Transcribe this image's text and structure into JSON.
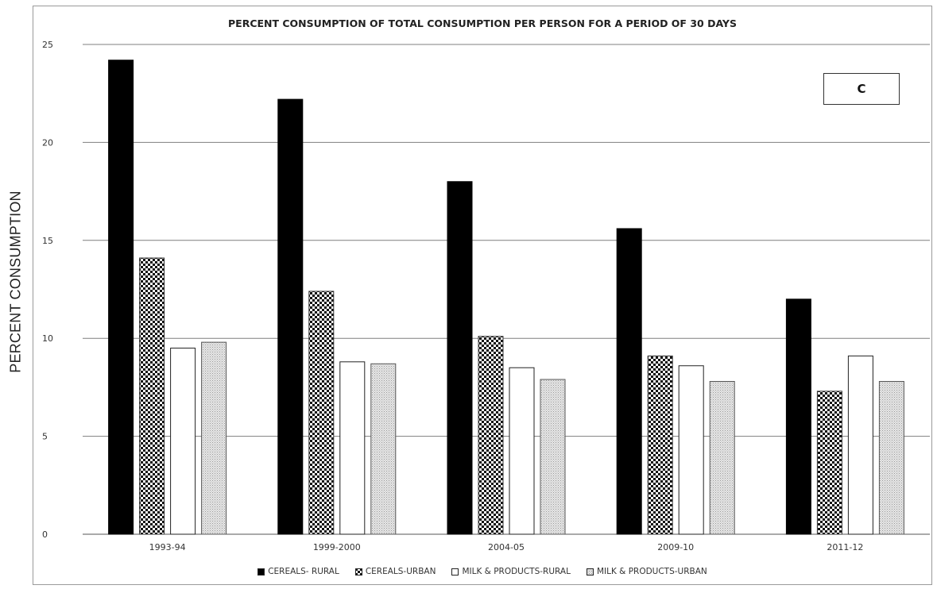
{
  "badge": "C",
  "colors": {
    "cereals_rural": "#000000",
    "milk_rural": "#ffffff",
    "milk_urban": "#d9d9d9",
    "gridline": "#7f7f7f"
  },
  "chart_data": {
    "type": "bar",
    "title": "PERCENT CONSUMPTION OF TOTAL CONSUMPTION PER PERSON FOR A PERIOD OF 30 DAYS",
    "xlabel": "",
    "ylabel": "PERCENT CONSUMPTION",
    "ylim": [
      0,
      25
    ],
    "yticks": [
      0,
      5,
      10,
      15,
      20,
      25
    ],
    "grid": true,
    "legend_position": "bottom",
    "categories": [
      "1993-94",
      "1999-2000",
      "2004-05",
      "2009-10",
      "2011-12"
    ],
    "series": [
      {
        "name": "CEREALS- RURAL",
        "values": [
          24.2,
          22.2,
          18.0,
          15.6,
          12.0
        ]
      },
      {
        "name": "CEREALS-URBAN",
        "values": [
          14.1,
          12.4,
          10.1,
          9.1,
          7.3
        ]
      },
      {
        "name": "MILK & PRODUCTS-RURAL",
        "values": [
          9.5,
          8.8,
          8.5,
          8.6,
          9.1
        ]
      },
      {
        "name": "MILK & PRODUCTS-URBAN",
        "values": [
          9.8,
          8.7,
          7.9,
          7.8,
          7.8
        ]
      }
    ]
  }
}
